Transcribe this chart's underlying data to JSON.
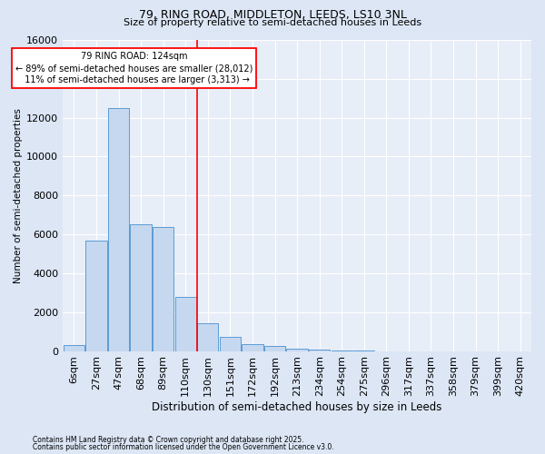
{
  "title_line1": "79, RING ROAD, MIDDLETON, LEEDS, LS10 3NL",
  "title_line2": "Size of property relative to semi-detached houses in Leeds",
  "xlabel": "Distribution of semi-detached houses by size in Leeds",
  "ylabel": "Number of semi-detached properties",
  "bin_labels": [
    "6sqm",
    "27sqm",
    "47sqm",
    "68sqm",
    "89sqm",
    "110sqm",
    "130sqm",
    "151sqm",
    "172sqm",
    "192sqm",
    "213sqm",
    "234sqm",
    "254sqm",
    "275sqm",
    "296sqm",
    "317sqm",
    "337sqm",
    "358sqm",
    "379sqm",
    "399sqm",
    "420sqm"
  ],
  "bar_values": [
    320,
    5700,
    12500,
    6500,
    6400,
    2800,
    1450,
    750,
    350,
    250,
    120,
    60,
    20,
    10,
    3,
    1,
    0,
    0,
    0,
    0,
    0
  ],
  "bar_color": "#c6d8ef",
  "bar_edge_color": "#5b9bd5",
  "vline_x_index": 6,
  "vline_label": "79 RING ROAD: 124sqm",
  "annotation_line1": "← 89% of semi-detached houses are smaller (28,012)",
  "annotation_line2": "11% of semi-detached houses are larger (3,313) →",
  "ylim": [
    0,
    16000
  ],
  "yticks": [
    0,
    2000,
    4000,
    6000,
    8000,
    10000,
    12000,
    14000,
    16000
  ],
  "footnote1": "Contains HM Land Registry data © Crown copyright and database right 2025.",
  "footnote2": "Contains public sector information licensed under the Open Government Licence v3.0.",
  "bg_color": "#dce6f5",
  "plot_bg_color": "#e8eef8"
}
